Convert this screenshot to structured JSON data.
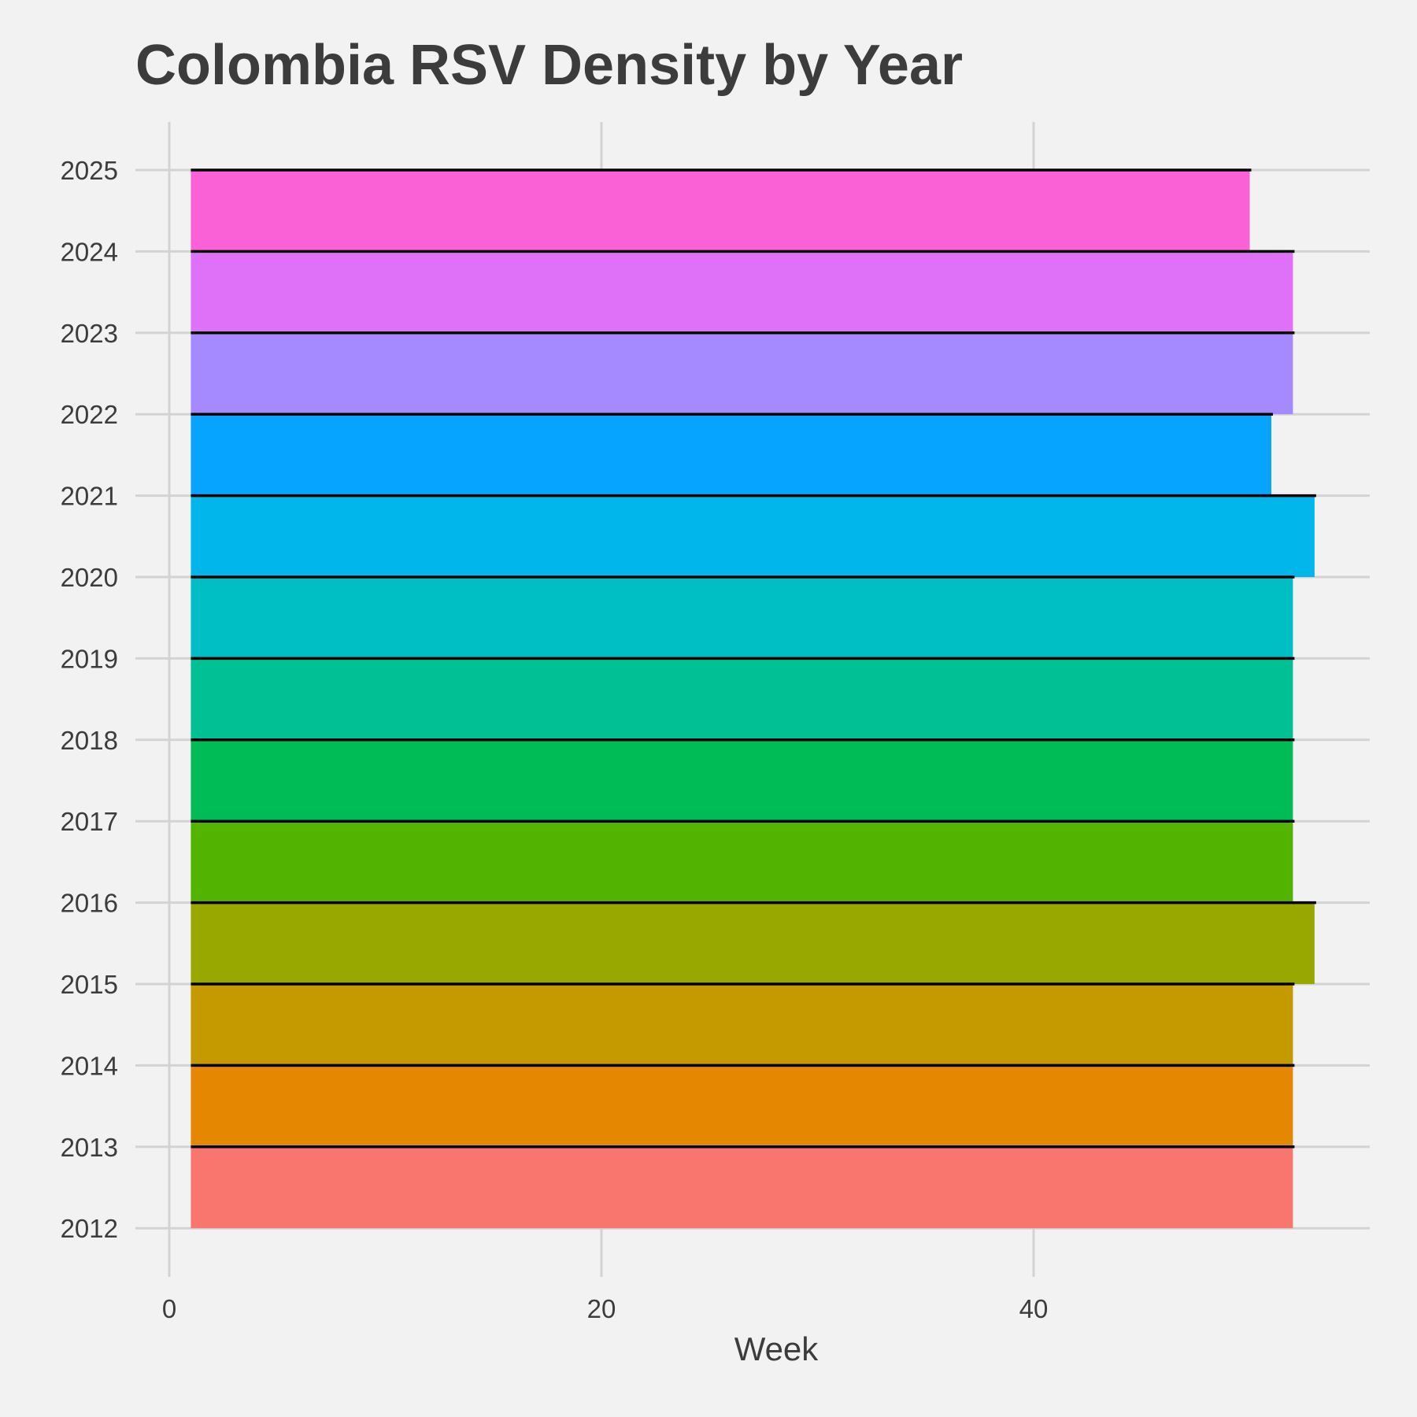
{
  "chart_data": {
    "type": "area",
    "title": "Colombia RSV Density by Year",
    "xlabel": "Week",
    "ylabel": "",
    "xlim": [
      -1,
      56
    ],
    "x_ticks": [
      0,
      20,
      40
    ],
    "y_categories": [
      "2012",
      "2013",
      "2014",
      "2015",
      "2016",
      "2017",
      "2018",
      "2019",
      "2020",
      "2021",
      "2022",
      "2023",
      "2024",
      "2025"
    ],
    "grid": true,
    "legend": "none",
    "series": [
      {
        "year": "2012",
        "x_start": 1,
        "x_end": 52,
        "color": "#F8766D"
      },
      {
        "year": "2013",
        "x_start": 1,
        "x_end": 52,
        "color": "#E58700"
      },
      {
        "year": "2014",
        "x_start": 1,
        "x_end": 52,
        "color": "#C49A00"
      },
      {
        "year": "2015",
        "x_start": 1,
        "x_end": 53,
        "color": "#99A800"
      },
      {
        "year": "2016",
        "x_start": 1,
        "x_end": 52,
        "color": "#53B400"
      },
      {
        "year": "2017",
        "x_start": 1,
        "x_end": 52,
        "color": "#00BC56"
      },
      {
        "year": "2018",
        "x_start": 1,
        "x_end": 52,
        "color": "#00C094"
      },
      {
        "year": "2019",
        "x_start": 1,
        "x_end": 52,
        "color": "#00BFC4"
      },
      {
        "year": "2020",
        "x_start": 1,
        "x_end": 53,
        "color": "#00B6EB"
      },
      {
        "year": "2021",
        "x_start": 1,
        "x_end": 51,
        "color": "#06A4FF"
      },
      {
        "year": "2022",
        "x_start": 1,
        "x_end": 52,
        "color": "#A58AFF"
      },
      {
        "year": "2023",
        "x_start": 1,
        "x_end": 52,
        "color": "#DF70F8"
      },
      {
        "year": "2024",
        "x_start": 1,
        "x_end": 50,
        "color": "#FB61D7"
      }
    ],
    "colors": {
      "background": "#f2f2f2",
      "grid": "#d3d3d3",
      "ridge_line": "#000000",
      "text": "#3c3c3c"
    }
  }
}
